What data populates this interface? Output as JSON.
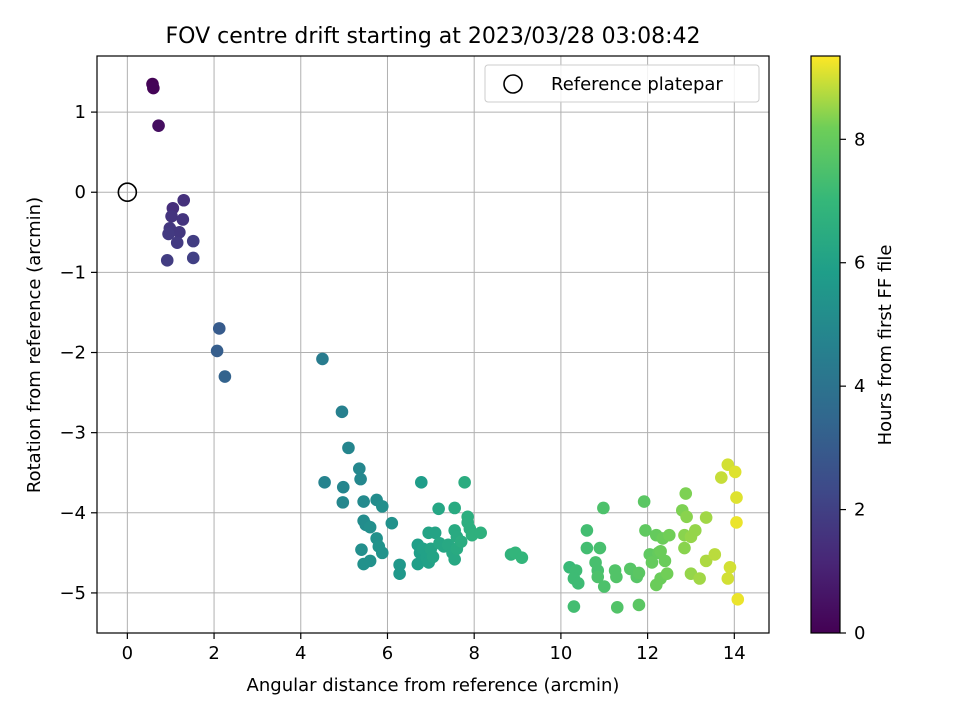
{
  "chart_data": {
    "type": "scatter",
    "title": "FOV centre drift starting at 2023/03/28 03:08:42",
    "xlabel": "Angular distance from reference (arcmin)",
    "ylabel": "Rotation from reference (arcmin)",
    "xlim": [
      -0.7,
      14.8
    ],
    "ylim": [
      -5.5,
      1.7
    ],
    "xticks": [
      0,
      2,
      4,
      6,
      8,
      10,
      12,
      14
    ],
    "yticks": [
      1,
      0,
      -1,
      -2,
      -3,
      -4,
      -5
    ],
    "grid": true,
    "colormap": "viridis",
    "colorbar": {
      "label": "Hours from first FF file",
      "range": [
        0,
        9.35
      ],
      "ticks": [
        0,
        2,
        4,
        6,
        8
      ]
    },
    "legend": {
      "position": "top-right",
      "entries": [
        {
          "label": "Reference platepar",
          "marker": "open-circle"
        }
      ]
    },
    "reference_point": {
      "x": 0,
      "y": 0
    },
    "points": [
      {
        "x": 0.58,
        "y": 1.35,
        "c": 0.05
      },
      {
        "x": 0.6,
        "y": 1.3,
        "c": 0.1
      },
      {
        "x": 0.72,
        "y": 0.83,
        "c": 0.4
      },
      {
        "x": 1.05,
        "y": -0.2,
        "c": 1.4
      },
      {
        "x": 1.3,
        "y": -0.1,
        "c": 1.5
      },
      {
        "x": 1.02,
        "y": -0.3,
        "c": 1.6
      },
      {
        "x": 1.28,
        "y": -0.34,
        "c": 1.6
      },
      {
        "x": 0.98,
        "y": -0.45,
        "c": 1.7
      },
      {
        "x": 1.2,
        "y": -0.5,
        "c": 1.7
      },
      {
        "x": 0.95,
        "y": -0.52,
        "c": 1.8
      },
      {
        "x": 1.15,
        "y": -0.63,
        "c": 1.8
      },
      {
        "x": 1.52,
        "y": -0.61,
        "c": 1.9
      },
      {
        "x": 0.92,
        "y": -0.85,
        "c": 1.9
      },
      {
        "x": 1.52,
        "y": -0.82,
        "c": 2.0
      },
      {
        "x": 2.12,
        "y": -1.7,
        "c": 3.0
      },
      {
        "x": 2.07,
        "y": -1.98,
        "c": 3.1
      },
      {
        "x": 2.25,
        "y": -2.3,
        "c": 3.3
      },
      {
        "x": 4.5,
        "y": -2.08,
        "c": 4.4
      },
      {
        "x": 4.95,
        "y": -2.74,
        "c": 4.6
      },
      {
        "x": 5.1,
        "y": -3.19,
        "c": 4.8
      },
      {
        "x": 4.55,
        "y": -3.62,
        "c": 4.7
      },
      {
        "x": 5.35,
        "y": -3.45,
        "c": 4.9
      },
      {
        "x": 5.38,
        "y": -3.58,
        "c": 4.9
      },
      {
        "x": 4.98,
        "y": -3.68,
        "c": 4.8
      },
      {
        "x": 4.97,
        "y": -3.87,
        "c": 4.9
      },
      {
        "x": 5.45,
        "y": -3.86,
        "c": 5.0
      },
      {
        "x": 5.75,
        "y": -3.84,
        "c": 5.1
      },
      {
        "x": 5.88,
        "y": -3.92,
        "c": 5.2
      },
      {
        "x": 5.45,
        "y": -4.1,
        "c": 5.1
      },
      {
        "x": 5.5,
        "y": -4.15,
        "c": 5.1
      },
      {
        "x": 5.6,
        "y": -4.18,
        "c": 5.2
      },
      {
        "x": 6.1,
        "y": -4.13,
        "c": 5.3
      },
      {
        "x": 5.75,
        "y": -4.32,
        "c": 5.3
      },
      {
        "x": 5.8,
        "y": -4.42,
        "c": 5.4
      },
      {
        "x": 5.88,
        "y": -4.5,
        "c": 5.4
      },
      {
        "x": 5.4,
        "y": -4.46,
        "c": 5.2
      },
      {
        "x": 5.45,
        "y": -4.64,
        "c": 5.3
      },
      {
        "x": 5.6,
        "y": -4.6,
        "c": 5.3
      },
      {
        "x": 6.28,
        "y": -4.65,
        "c": 5.6
      },
      {
        "x": 6.28,
        "y": -4.76,
        "c": 5.6
      },
      {
        "x": 6.78,
        "y": -3.62,
        "c": 5.8
      },
      {
        "x": 6.7,
        "y": -4.4,
        "c": 5.9
      },
      {
        "x": 6.75,
        "y": -4.5,
        "c": 5.9
      },
      {
        "x": 6.82,
        "y": -4.45,
        "c": 6.0
      },
      {
        "x": 6.7,
        "y": -4.64,
        "c": 5.9
      },
      {
        "x": 6.9,
        "y": -4.56,
        "c": 6.0
      },
      {
        "x": 6.95,
        "y": -4.62,
        "c": 6.0
      },
      {
        "x": 7.0,
        "y": -4.45,
        "c": 6.1
      },
      {
        "x": 7.05,
        "y": -4.55,
        "c": 6.1
      },
      {
        "x": 6.95,
        "y": -4.25,
        "c": 6.1
      },
      {
        "x": 7.1,
        "y": -4.25,
        "c": 6.1
      },
      {
        "x": 7.18,
        "y": -3.95,
        "c": 6.2
      },
      {
        "x": 7.2,
        "y": -4.38,
        "c": 6.2
      },
      {
        "x": 7.3,
        "y": -4.42,
        "c": 6.2
      },
      {
        "x": 7.4,
        "y": -4.4,
        "c": 6.3
      },
      {
        "x": 7.5,
        "y": -4.5,
        "c": 6.3
      },
      {
        "x": 7.55,
        "y": -4.58,
        "c": 6.3
      },
      {
        "x": 7.6,
        "y": -4.45,
        "c": 6.4
      },
      {
        "x": 7.55,
        "y": -4.22,
        "c": 6.4
      },
      {
        "x": 7.6,
        "y": -4.3,
        "c": 6.4
      },
      {
        "x": 7.55,
        "y": -3.94,
        "c": 6.4
      },
      {
        "x": 7.78,
        "y": -3.62,
        "c": 6.5
      },
      {
        "x": 7.85,
        "y": -4.05,
        "c": 6.6
      },
      {
        "x": 7.85,
        "y": -4.12,
        "c": 6.6
      },
      {
        "x": 7.9,
        "y": -4.2,
        "c": 6.6
      },
      {
        "x": 7.95,
        "y": -4.28,
        "c": 6.7
      },
      {
        "x": 8.15,
        "y": -4.25,
        "c": 6.7
      },
      {
        "x": 7.7,
        "y": -4.36,
        "c": 6.5
      },
      {
        "x": 8.85,
        "y": -4.52,
        "c": 6.8
      },
      {
        "x": 8.95,
        "y": -4.5,
        "c": 6.9
      },
      {
        "x": 9.1,
        "y": -4.56,
        "c": 6.9
      },
      {
        "x": 10.2,
        "y": -4.68,
        "c": 7.1
      },
      {
        "x": 10.35,
        "y": -4.72,
        "c": 7.2
      },
      {
        "x": 10.3,
        "y": -4.82,
        "c": 7.2
      },
      {
        "x": 10.4,
        "y": -4.88,
        "c": 7.2
      },
      {
        "x": 10.3,
        "y": -5.17,
        "c": 7.3
      },
      {
        "x": 10.6,
        "y": -4.22,
        "c": 7.3
      },
      {
        "x": 10.6,
        "y": -4.44,
        "c": 7.3
      },
      {
        "x": 10.8,
        "y": -4.62,
        "c": 7.4
      },
      {
        "x": 10.85,
        "y": -4.72,
        "c": 7.4
      },
      {
        "x": 10.9,
        "y": -4.44,
        "c": 7.4
      },
      {
        "x": 10.85,
        "y": -4.8,
        "c": 7.5
      },
      {
        "x": 11.0,
        "y": -4.92,
        "c": 7.5
      },
      {
        "x": 10.98,
        "y": -3.94,
        "c": 7.5
      },
      {
        "x": 11.25,
        "y": -4.72,
        "c": 7.6
      },
      {
        "x": 11.28,
        "y": -4.8,
        "c": 7.6
      },
      {
        "x": 11.3,
        "y": -5.18,
        "c": 7.6
      },
      {
        "x": 11.6,
        "y": -4.7,
        "c": 7.7
      },
      {
        "x": 11.75,
        "y": -4.8,
        "c": 7.7
      },
      {
        "x": 11.8,
        "y": -4.75,
        "c": 7.8
      },
      {
        "x": 11.8,
        "y": -5.15,
        "c": 7.8
      },
      {
        "x": 11.92,
        "y": -3.86,
        "c": 7.8
      },
      {
        "x": 11.95,
        "y": -4.22,
        "c": 7.9
      },
      {
        "x": 12.05,
        "y": -4.52,
        "c": 7.9
      },
      {
        "x": 12.1,
        "y": -4.62,
        "c": 8.0
      },
      {
        "x": 12.2,
        "y": -4.28,
        "c": 8.0
      },
      {
        "x": 12.25,
        "y": -4.5,
        "c": 8.0
      },
      {
        "x": 12.3,
        "y": -4.48,
        "c": 8.1
      },
      {
        "x": 12.35,
        "y": -4.32,
        "c": 8.1
      },
      {
        "x": 12.4,
        "y": -4.6,
        "c": 8.1
      },
      {
        "x": 12.3,
        "y": -4.82,
        "c": 8.1
      },
      {
        "x": 12.2,
        "y": -4.9,
        "c": 8.1
      },
      {
        "x": 12.45,
        "y": -4.76,
        "c": 8.2
      },
      {
        "x": 12.5,
        "y": -4.28,
        "c": 8.2
      },
      {
        "x": 12.8,
        "y": -3.97,
        "c": 8.3
      },
      {
        "x": 12.88,
        "y": -3.76,
        "c": 8.3
      },
      {
        "x": 12.9,
        "y": -4.05,
        "c": 8.4
      },
      {
        "x": 12.85,
        "y": -4.28,
        "c": 8.4
      },
      {
        "x": 12.85,
        "y": -4.44,
        "c": 8.4
      },
      {
        "x": 13.0,
        "y": -4.3,
        "c": 8.5
      },
      {
        "x": 13.1,
        "y": -4.22,
        "c": 8.5
      },
      {
        "x": 13.0,
        "y": -4.76,
        "c": 8.5
      },
      {
        "x": 13.2,
        "y": -4.82,
        "c": 8.6
      },
      {
        "x": 13.35,
        "y": -4.06,
        "c": 8.6
      },
      {
        "x": 13.35,
        "y": -4.6,
        "c": 8.7
      },
      {
        "x": 13.55,
        "y": -4.52,
        "c": 8.8
      },
      {
        "x": 13.7,
        "y": -3.56,
        "c": 8.9
      },
      {
        "x": 13.85,
        "y": -3.4,
        "c": 9.0
      },
      {
        "x": 13.9,
        "y": -4.68,
        "c": 9.0
      },
      {
        "x": 13.85,
        "y": -4.82,
        "c": 9.0
      },
      {
        "x": 14.02,
        "y": -3.49,
        "c": 9.1
      },
      {
        "x": 14.05,
        "y": -3.81,
        "c": 9.1
      },
      {
        "x": 14.05,
        "y": -4.12,
        "c": 9.2
      },
      {
        "x": 14.08,
        "y": -5.08,
        "c": 9.2
      }
    ]
  }
}
